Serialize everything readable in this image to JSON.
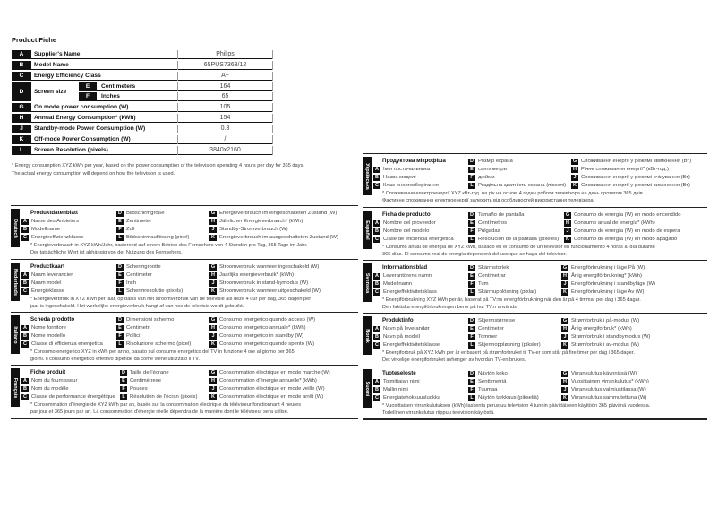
{
  "fiche": {
    "title": "Product Fiche",
    "rows": [
      {
        "letter": "A",
        "label": "Supplier's Name",
        "value": "Philips"
      },
      {
        "letter": "B",
        "label": "Model Name",
        "value": "65PUS7363/12"
      },
      {
        "letter": "C",
        "label": "Energy Efficiency Class",
        "value": "A+"
      },
      {
        "letter": "D",
        "label": "Screen size",
        "sub": [
          {
            "letter": "E",
            "label": "Centimeters",
            "value": "164"
          },
          {
            "letter": "F",
            "label": "Inches",
            "value": "65"
          }
        ]
      },
      {
        "letter": "G",
        "label": "On mode power consumption (W)",
        "value": "105"
      },
      {
        "letter": "H",
        "label": "Annual Energy Consumption* (kWh)",
        "value": "154"
      },
      {
        "letter": "J",
        "label": "Standby-mode Power Consumption (W)",
        "value": "0.3"
      },
      {
        "letter": "K",
        "label": "Off-mode Power Consumption (W)",
        "value": "/"
      },
      {
        "letter": "L",
        "label": "Screen Resolution (pixels)",
        "value": "3840x2160"
      }
    ],
    "footnote": [
      "* Energy consumption XYZ kWh per year, based on the power consumption of the television operating 4 hours per day for 365 days.",
      "The actual energy consumption will depend on how the television is used."
    ]
  },
  "languages": [
    {
      "name": "Deutsch",
      "title": "Produktdatenblatt",
      "items": [
        {
          "letter": "D",
          "label": "Bildschirmgröße"
        },
        {
          "letter": "G",
          "label": "Energieverbrauch im eingeschalteten Zustand (W)"
        },
        {
          "letter": "A",
          "label": "Name des Anbieters"
        },
        {
          "letter": "E",
          "label": "Zentimeter"
        },
        {
          "letter": "H",
          "label": "Jährlicher Energieverbrauch* (kWh)"
        },
        {
          "letter": "B",
          "label": "Modellname"
        },
        {
          "letter": "F",
          "label": "Zoll"
        },
        {
          "letter": "J",
          "label": "Standby-Stromverbrauch (W)"
        },
        {
          "letter": "C",
          "label": "Energieeffizienzklasse"
        },
        {
          "letter": "L",
          "label": "Bildschirmauflösung (pixel)"
        },
        {
          "letter": "K",
          "label": "Energieverbrauch im ausgeschalteten Zustand (W)"
        }
      ],
      "footnote": [
        "* Energieverbrauch in XYZ kWh/Jahr, basierend auf einem Betrieb des Fernsehers von 4 Stunden pro Tag, 365 Tage im Jahr.",
        "Der tatsächliche Wert ist abhängig von der Nutzung des Fernsehers."
      ]
    },
    {
      "name": "Nederlands",
      "title": "Productkaart",
      "items": [
        {
          "letter": "D",
          "label": "Schermgrootte"
        },
        {
          "letter": "G",
          "label": "Stroomverbruik wanneer ingeschakeld (W)"
        },
        {
          "letter": "A",
          "label": "Naam leverancier"
        },
        {
          "letter": "E",
          "label": "Centimeter"
        },
        {
          "letter": "H",
          "label": "Jaarlijks energieverbruik* (kWh)"
        },
        {
          "letter": "B",
          "label": "Naam model"
        },
        {
          "letter": "F",
          "label": "Inch"
        },
        {
          "letter": "J",
          "label": "Stroomverbruik in stand-bymodus (W)"
        },
        {
          "letter": "C",
          "label": "Energieklasse"
        },
        {
          "letter": "L",
          "label": "Schermresolutie (pixels)"
        },
        {
          "letter": "K",
          "label": "Stroomverbruik wanneer uitgeschakeld (W)"
        }
      ],
      "footnote": [
        "* Energieverbruik in XYZ kWh per jaar, op basis van het stroomverbruik van de televisie als deze 4 uur per dag, 365 dagen per",
        "jaar is ingeschakeld. Het werkelijke energieverbruik hangt af van hoe de televisie wordt gebruikt."
      ]
    },
    {
      "name": "Italiano",
      "title": "Scheda prodotto",
      "items": [
        {
          "letter": "D",
          "label": "Dimensioni schermo"
        },
        {
          "letter": "G",
          "label": "Consumo energetico quando acceso (W)"
        },
        {
          "letter": "A",
          "label": "Nome fornitore"
        },
        {
          "letter": "E",
          "label": "Centimetri"
        },
        {
          "letter": "H",
          "label": "Consumo energetico annuale* (kWh)"
        },
        {
          "letter": "B",
          "label": "Nome modello"
        },
        {
          "letter": "F",
          "label": "Pollici"
        },
        {
          "letter": "J",
          "label": "Consumo energetico in standby (W)"
        },
        {
          "letter": "C",
          "label": "Classe di efficienza energetica"
        },
        {
          "letter": "L",
          "label": "Risoluzione schermo (pixel)"
        },
        {
          "letter": "K",
          "label": "Consumo energetico quando spento (W)"
        }
      ],
      "footnote": [
        "* Consumo energetico XYZ in kWh per anno, basato sul consumo energetico del TV in funzione 4 ore al giorno per 365",
        "giorni. Il consumo energetico effettivo dipende da come viene utilizzato il TV."
      ]
    },
    {
      "name": "Français",
      "title": "Fiche produit",
      "items": [
        {
          "letter": "D",
          "label": "Taille de l'écrane"
        },
        {
          "letter": "G",
          "label": "Consommation électrique en mode marche (W)"
        },
        {
          "letter": "A",
          "label": "Nom du fournisseur"
        },
        {
          "letter": "E",
          "label": "Centimètrese"
        },
        {
          "letter": "H",
          "label": "Consommation d'énergie annuelle* (kWh)"
        },
        {
          "letter": "B",
          "label": "Nom du modèle"
        },
        {
          "letter": "F",
          "label": "Pouces"
        },
        {
          "letter": "J",
          "label": "Consommation électrique en mode veille (W)"
        },
        {
          "letter": "C",
          "label": "Classe de performance énergétique"
        },
        {
          "letter": "L",
          "label": "Résolution de l'écran (pixels)"
        },
        {
          "letter": "K",
          "label": "Consommation électrique en mode arrêt (W)"
        }
      ],
      "footnote": [
        "* Consommation d'énergie de XYZ kWh par an, basée sur la consommation électrique du téléviseur fonctionnant 4 heures",
        "par jour et 365 jours par an. La consommation d'énergie réelle dépendra de la manière dont le téléviseur sera utilisé."
      ]
    },
    {
      "name": "Українська",
      "title": "Продуктова мікрофіша",
      "items": [
        {
          "letter": "D",
          "label": "Розмір екрана"
        },
        {
          "letter": "G",
          "label": "Споживання енергії у режимі ввімкнення (Вт)"
        },
        {
          "letter": "A",
          "label": "Ім'я постачальника"
        },
        {
          "letter": "E",
          "label": "сантиметри"
        },
        {
          "letter": "H",
          "label": "Річне споживання енергії* (кВт-год.)"
        },
        {
          "letter": "B",
          "label": "Назва моделі"
        },
        {
          "letter": "F",
          "label": "дюйми"
        },
        {
          "letter": "J",
          "label": "Споживання енергії у режимі очікування (Вт)"
        },
        {
          "letter": "C",
          "label": "Клас енергозберігання"
        },
        {
          "letter": "L",
          "label": "Роздільна здатність екрана (пікселі)"
        },
        {
          "letter": "K",
          "label": "Споживання енергії у режимі вимкнення (Вт)"
        }
      ],
      "footnote": [
        "* Споживання електроенергії XYZ кВт-год. на рік на основі 4 годин роботи телевізора на день протягом 365 днів.",
        "Фактичне споживання електроенергії залежить від особливостей використання телевізора."
      ]
    },
    {
      "name": "Español",
      "title": "Ficha de producto",
      "items": [
        {
          "letter": "D",
          "label": "Tamaño de pantalla"
        },
        {
          "letter": "G",
          "label": "Consumo de energía (W) en modo encendido"
        },
        {
          "letter": "A",
          "label": "Nombre del proveedor"
        },
        {
          "letter": "E",
          "label": "Centímetros"
        },
        {
          "letter": "H",
          "label": "Consumo anual de energía* (kWh)"
        },
        {
          "letter": "B",
          "label": "Nombre del modelo"
        },
        {
          "letter": "F",
          "label": "Pulgadas"
        },
        {
          "letter": "J",
          "label": "Consumo de energía (W) en modo de espera"
        },
        {
          "letter": "C",
          "label": "Clase de eficiencia energética"
        },
        {
          "letter": "L",
          "label": "Resolución de la pantalla (píxeles)"
        },
        {
          "letter": "K",
          "label": "Consumo de energía (W) en modo apagado"
        }
      ],
      "footnote": [
        "* Consumo anual de energía de XYZ kWh, basado en el consumo de un televisor en funcionamiento 4 horas al día durante",
        "365 días. El consumo real de energía dependerá del uso que se haga del televisor."
      ]
    },
    {
      "name": "Svenska",
      "title": "Informationsblad",
      "items": [
        {
          "letter": "D",
          "label": "Skärmstorlek"
        },
        {
          "letter": "G",
          "label": "Energiförbrukning i läge På (W)"
        },
        {
          "letter": "A",
          "label": "Leverantörens namn"
        },
        {
          "letter": "E",
          "label": "Centimetrar"
        },
        {
          "letter": "H",
          "label": "Årlig energiförbrukning* (kWh)"
        },
        {
          "letter": "B",
          "label": "Modellnamn"
        },
        {
          "letter": "F",
          "label": "Tum"
        },
        {
          "letter": "J",
          "label": "Energiförbrukning i standbyläge (W)"
        },
        {
          "letter": "C",
          "label": "Energieffektivitetsklass"
        },
        {
          "letter": "L",
          "label": "Skärmupplösning (pixlar)"
        },
        {
          "letter": "K",
          "label": "Energiförbrukning i läge Av (W)"
        }
      ],
      "footnote": [
        "* Energiförbrukning XYZ kWh per år, baserat på TV:ns energiförbrukning när den är på 4 timmar per dag i 365 dagar.",
        "Den faktiska energiförbrukningen beror på hur TV:n används."
      ]
    },
    {
      "name": "Norsk",
      "title": "Produktinfo",
      "items": [
        {
          "letter": "D",
          "label": "Skjermstørrelse"
        },
        {
          "letter": "G",
          "label": "Strømforbruk i på-modus (W)"
        },
        {
          "letter": "A",
          "label": "Navn på leverandør"
        },
        {
          "letter": "E",
          "label": "Centimeter"
        },
        {
          "letter": "H",
          "label": "Årlig energiforbruk* (kWh)"
        },
        {
          "letter": "B",
          "label": "Navn på modell"
        },
        {
          "letter": "F",
          "label": "Tommer"
        },
        {
          "letter": "J",
          "label": "Strømforbruk i standbymodus (W)"
        },
        {
          "letter": "C",
          "label": "Energieffektivitetsklasse"
        },
        {
          "letter": "L",
          "label": "Skjermoppløsning (piksler)"
        },
        {
          "letter": "K",
          "label": "Strømforbruk i av-modus (W)"
        }
      ],
      "footnote": [
        "* Energiforbruk på XYZ kWh per år er basert på strømforbruket til TV-er som står på fire timer per dag i 365 dager.",
        "Det virkelige energiforbruket avhenger av hvordan TV-en brukes."
      ]
    },
    {
      "name": "Suomi",
      "title": "Tuoteseloste",
      "items": [
        {
          "letter": "D",
          "label": "Näytön koko"
        },
        {
          "letter": "G",
          "label": "Virrankulutus käynnissä (W)"
        },
        {
          "letter": "A",
          "label": "Toimittajan nimi"
        },
        {
          "letter": "E",
          "label": "Senttimetriä"
        },
        {
          "letter": "H",
          "label": "Vuosittainen virrankulutus* (kWh)"
        },
        {
          "letter": "B",
          "label": "Mallin nimi"
        },
        {
          "letter": "F",
          "label": "Tuumaa"
        },
        {
          "letter": "J",
          "label": "Virrankulutus valmiustilassa (W)"
        },
        {
          "letter": "C",
          "label": "Energiatehokkuusluokka"
        },
        {
          "letter": "L",
          "label": "Näytön tarkkuus (pikseliä)"
        },
        {
          "letter": "K",
          "label": "Virrankulutus sammutettuna (W)"
        }
      ],
      "footnote": [
        "* Vuosittaisen virrankulutuksen (kWh) laskenta perustuu television 4 tunnin päivittäiseen käyttöön 365 päivänä vuodessa.",
        "Todellinen virrankulutus riippuu television käytöstä."
      ]
    }
  ]
}
